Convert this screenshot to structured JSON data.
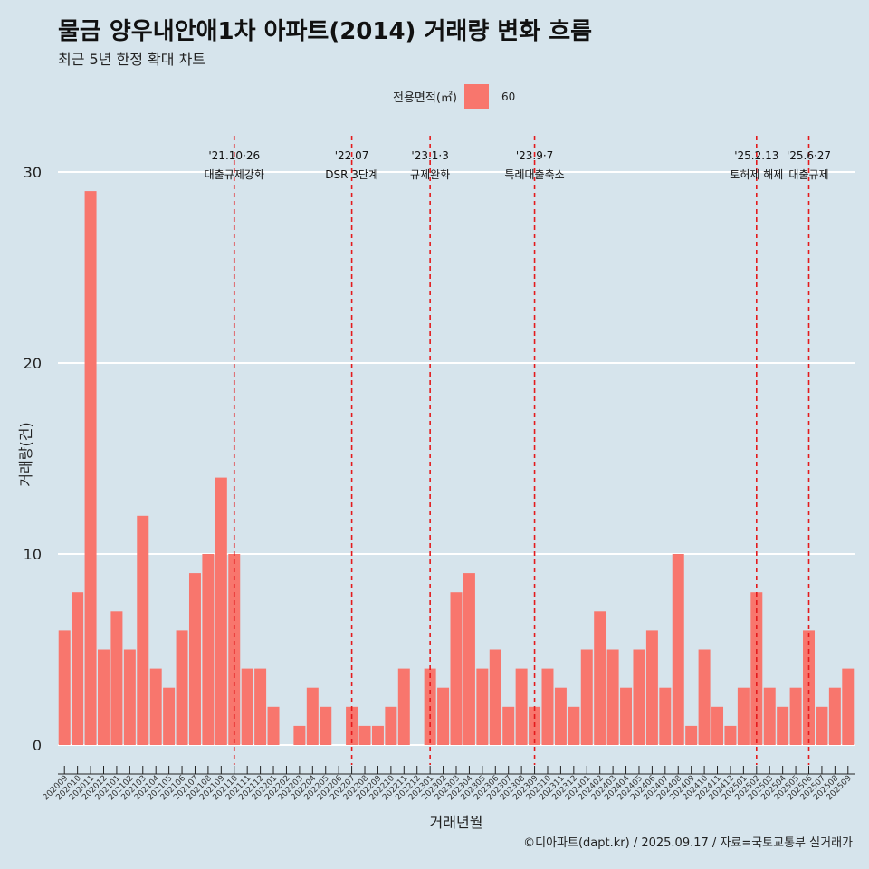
{
  "title": "물금 양우내안애1차 아파트(2014) 거래량 변화 흐름",
  "subtitle": "최근 5년 한정 확대 차트",
  "caption": "©디아파트(dapt.kr) / 2025.09.17 / 자료=국토교통부 실거래가",
  "legend": {
    "title": "전용면적(㎡)",
    "items": [
      {
        "label": "60",
        "color": "#f8766d"
      }
    ]
  },
  "chart_data": {
    "type": "bar",
    "xlabel": "거래년월",
    "ylabel": "거래량(건)",
    "ylim": [
      0,
      30
    ],
    "yticks": [
      0,
      10,
      20,
      30
    ],
    "grid": true,
    "legend_position": "top",
    "categories": [
      "202009",
      "202010",
      "202011",
      "202012",
      "202101",
      "202102",
      "202103",
      "202104",
      "202105",
      "202106",
      "202107",
      "202108",
      "202109",
      "202110",
      "202111",
      "202112",
      "202201",
      "202202",
      "202203",
      "202204",
      "202205",
      "202206",
      "202207",
      "202208",
      "202209",
      "202210",
      "202211",
      "202212",
      "202301",
      "202302",
      "202303",
      "202304",
      "202305",
      "202306",
      "202307",
      "202308",
      "202309",
      "202310",
      "202311",
      "202312",
      "202401",
      "202402",
      "202403",
      "202404",
      "202405",
      "202406",
      "202407",
      "202408",
      "202409",
      "202410",
      "202411",
      "202412",
      "202501",
      "202502",
      "202503",
      "202504",
      "202505",
      "202506",
      "202507",
      "202508",
      "202509"
    ],
    "series": [
      {
        "name": "60",
        "color": "#f8766d",
        "values": [
          6,
          8,
          29,
          5,
          7,
          5,
          12,
          4,
          3,
          6,
          9,
          10,
          14,
          10,
          4,
          4,
          2,
          0,
          1,
          3,
          2,
          0,
          2,
          1,
          1,
          2,
          4,
          0,
          4,
          3,
          8,
          9,
          4,
          5,
          2,
          4,
          2,
          4,
          3,
          2,
          5,
          7,
          5,
          3,
          5,
          6,
          3,
          10,
          1,
          5,
          2,
          1,
          3,
          8,
          3,
          2,
          3,
          6,
          2,
          3,
          4
        ]
      }
    ],
    "annotations": [
      {
        "category": "202110",
        "line1": "'21.10·26",
        "line2": "대출규제강화"
      },
      {
        "category": "202207",
        "line1": "'22.07",
        "line2": "DSR 3단계"
      },
      {
        "category": "202301",
        "line1": "'23.1·3",
        "line2": "규제완화"
      },
      {
        "category": "202309",
        "line1": "'23.9·7",
        "line2": "특례대출축소"
      },
      {
        "category": "202502",
        "line1": "'25.2.13",
        "line2": "토허제 해제"
      },
      {
        "category": "202506",
        "line1": "'25.6·27",
        "line2": "대출규제"
      }
    ],
    "annotation_color": "#e41a1c"
  }
}
